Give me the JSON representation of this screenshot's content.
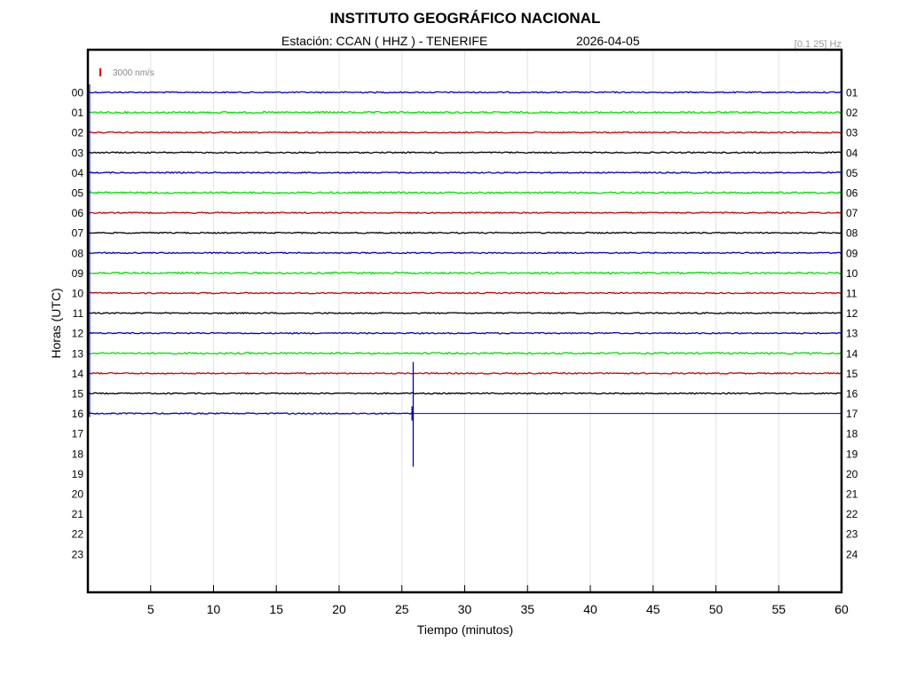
{
  "chart_data": {
    "type": "line",
    "title": "INSTITUTO GEOGRÁFICO NACIONAL",
    "station_label": "Estación:  CCAN ( HHZ ) - TENERIFE",
    "date": "2026-04-05",
    "frequency_band": "[0.1 25] Hz",
    "scale_label": "3000 nm/s",
    "xlabel": "Tiempo (minutos)",
    "ylabel": "Horas (UTC)",
    "xlim": [
      0,
      60
    ],
    "x_ticks": [
      5,
      10,
      15,
      20,
      25,
      30,
      35,
      40,
      45,
      50,
      55,
      60
    ],
    "left_hour_labels": [
      "00",
      "01",
      "02",
      "03",
      "04",
      "05",
      "06",
      "07",
      "08",
      "09",
      "10",
      "11",
      "12",
      "13",
      "14",
      "15",
      "16",
      "17",
      "18",
      "19",
      "20",
      "21",
      "22",
      "23"
    ],
    "right_hour_labels": [
      "01",
      "02",
      "03",
      "04",
      "05",
      "06",
      "07",
      "08",
      "09",
      "10",
      "11",
      "12",
      "13",
      "14",
      "15",
      "16",
      "17",
      "18",
      "19",
      "20",
      "21",
      "22",
      "23",
      "24"
    ],
    "grid": true,
    "trace_colors": [
      "#0000cc",
      "#00e000",
      "#cc0000",
      "#000000"
    ],
    "series": [
      {
        "hour": "00",
        "end_minute": 60
      },
      {
        "hour": "01",
        "end_minute": 60
      },
      {
        "hour": "02",
        "end_minute": 60
      },
      {
        "hour": "03",
        "end_minute": 60
      },
      {
        "hour": "04",
        "end_minute": 60
      },
      {
        "hour": "05",
        "end_minute": 60
      },
      {
        "hour": "06",
        "end_minute": 60
      },
      {
        "hour": "07",
        "end_minute": 60
      },
      {
        "hour": "08",
        "end_minute": 60
      },
      {
        "hour": "09",
        "end_minute": 60
      },
      {
        "hour": "10",
        "end_minute": 60
      },
      {
        "hour": "11",
        "end_minute": 60
      },
      {
        "hour": "12",
        "end_minute": 60
      },
      {
        "hour": "13",
        "end_minute": 60
      },
      {
        "hour": "14",
        "end_minute": 60
      },
      {
        "hour": "15",
        "end_minute": 60
      },
      {
        "hour": "16",
        "end_minute": 25.9
      }
    ]
  }
}
